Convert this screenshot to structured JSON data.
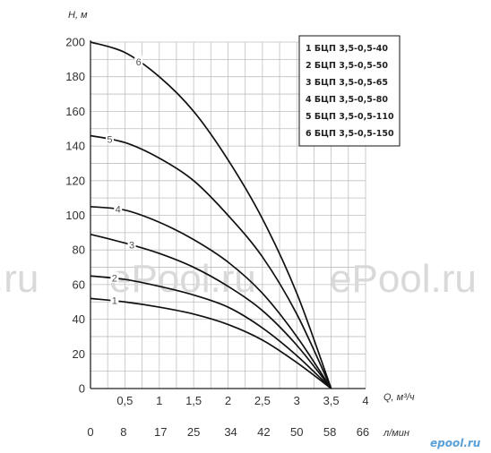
{
  "chart_data": {
    "type": "line",
    "ylabel": "H, м",
    "xlabel": "Q, м³/ч",
    "xlabel2": "л/мин",
    "ylim": [
      0,
      200
    ],
    "yticks": [
      0,
      20,
      40,
      60,
      80,
      100,
      120,
      140,
      160,
      180,
      200
    ],
    "xlim": [
      0,
      4
    ],
    "xticks": [
      0.5,
      1,
      1.5,
      2,
      2.5,
      3,
      3.5,
      4
    ],
    "xtick_labels": [
      "0,5",
      "1",
      "1,5",
      "2",
      "2,5",
      "3",
      "3,5",
      "4"
    ],
    "x2ticks": [
      0,
      8,
      17,
      25,
      34,
      42,
      50,
      58,
      66
    ],
    "grid": true,
    "legend_placement": "top-right",
    "series": [
      {
        "name": "БЦП 3,5-0,5-40",
        "label": "1",
        "x": [
          0,
          0.5,
          1,
          1.5,
          2,
          2.5,
          3,
          3.5
        ],
        "y": [
          52,
          50,
          47,
          43,
          37,
          28,
          15,
          0
        ]
      },
      {
        "name": "БЦП 3,5-0,5-50",
        "label": "2",
        "x": [
          0,
          0.5,
          1,
          1.5,
          2,
          2.5,
          3,
          3.5
        ],
        "y": [
          65,
          63,
          59,
          54,
          47,
          35,
          19,
          0
        ]
      },
      {
        "name": "БЦП 3,5-0,5-65",
        "label": "3",
        "x": [
          0,
          0.5,
          1,
          1.5,
          2,
          2.5,
          3,
          3.5
        ],
        "y": [
          89,
          84,
          78,
          70,
          59,
          45,
          25,
          0
        ]
      },
      {
        "name": "БЦП 3,5-0,5-80",
        "label": "4",
        "x": [
          0,
          0.5,
          1,
          1.5,
          2,
          2.5,
          3,
          3.5
        ],
        "y": [
          105,
          103,
          96,
          86,
          73,
          55,
          30,
          0
        ]
      },
      {
        "name": "БЦП 3,5-0,5-110",
        "label": "5",
        "x": [
          0,
          0.5,
          1,
          1.5,
          2,
          2.5,
          3,
          3.5
        ],
        "y": [
          146,
          142,
          133,
          120,
          100,
          76,
          43,
          0
        ]
      },
      {
        "name": "БЦП 3,5-0,5-150",
        "label": "6",
        "x": [
          0,
          0.5,
          1,
          1.5,
          2,
          2.5,
          3,
          3.5
        ],
        "y": [
          200,
          194,
          180,
          160,
          132,
          98,
          55,
          0
        ]
      }
    ]
  },
  "watermarks": [
    "ePool.ru",
    "ePool.ru",
    ".ru"
  ],
  "logo": "epool.ru",
  "colors": {
    "line": "#111111",
    "grid": "#bfbfbf",
    "watermark": "#d9d9d9",
    "logo": "#58a0d8"
  }
}
